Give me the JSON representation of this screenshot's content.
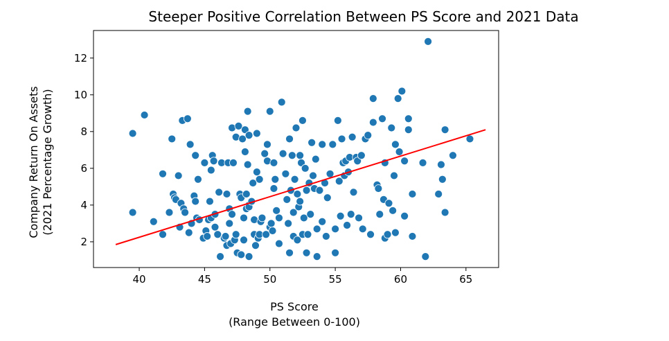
{
  "chart_data": {
    "type": "scatter",
    "title": "Steeper Positive Correlation Between PS Score and 2021 Data",
    "xlabel": [
      "PS Score",
      "(Range Between 0-100)"
    ],
    "ylabel": [
      "Company Return On Assets",
      "(2021 Percentage Growth)"
    ],
    "xlim": [
      36.5,
      67.5
    ],
    "ylim": [
      0.6,
      13.5
    ],
    "xticks": [
      40,
      45,
      50,
      55,
      60,
      65
    ],
    "yticks": [
      2,
      4,
      6,
      8,
      10,
      12
    ],
    "colors": {
      "points": "#1f77b4",
      "trendline": "#ff0000"
    },
    "trendline": {
      "x": [
        38.2,
        66.5
      ],
      "y": [
        1.85,
        8.1
      ]
    },
    "points": [
      [
        39.5,
        7.9
      ],
      [
        39.5,
        3.6
      ],
      [
        40.4,
        8.9
      ],
      [
        41.1,
        3.1
      ],
      [
        41.8,
        5.7
      ],
      [
        41.8,
        2.4
      ],
      [
        42.3,
        3.6
      ],
      [
        42.5,
        7.6
      ],
      [
        42.6,
        4.6
      ],
      [
        42.7,
        4.4
      ],
      [
        42.8,
        4.3
      ],
      [
        43.0,
        5.6
      ],
      [
        43.1,
        2.8
      ],
      [
        43.2,
        4.1
      ],
      [
        43.3,
        8.6
      ],
      [
        43.4,
        3.8
      ],
      [
        43.5,
        3.6
      ],
      [
        43.7,
        8.7
      ],
      [
        43.8,
        2.5
      ],
      [
        43.9,
        7.3
      ],
      [
        44.0,
        3.0
      ],
      [
        44.2,
        4.5
      ],
      [
        44.3,
        6.7
      ],
      [
        44.3,
        4.2
      ],
      [
        44.4,
        3.3
      ],
      [
        44.5,
        5.4
      ],
      [
        44.6,
        3.2
      ],
      [
        44.9,
        2.2
      ],
      [
        45.0,
        6.3
      ],
      [
        45.1,
        2.6
      ],
      [
        45.2,
        2.3
      ],
      [
        45.3,
        3.2
      ],
      [
        45.4,
        4.2
      ],
      [
        45.5,
        5.9
      ],
      [
        45.5,
        3.3
      ],
      [
        45.6,
        6.7
      ],
      [
        45.7,
        6.4
      ],
      [
        45.8,
        3.5
      ],
      [
        45.8,
        2.8
      ],
      [
        46.0,
        2.4
      ],
      [
        46.1,
        4.7
      ],
      [
        46.2,
        1.2
      ],
      [
        46.3,
        6.3
      ],
      [
        46.5,
        2.2
      ],
      [
        46.6,
        2.3
      ],
      [
        46.7,
        1.8
      ],
      [
        46.7,
        4.6
      ],
      [
        46.8,
        6.3
      ],
      [
        46.9,
        3.8
      ],
      [
        46.9,
        3.0
      ],
      [
        47.0,
        1.9
      ],
      [
        47.1,
        8.2
      ],
      [
        47.1,
        3.5
      ],
      [
        47.2,
        6.3
      ],
      [
        47.3,
        2.1
      ],
      [
        47.4,
        2.4
      ],
      [
        47.4,
        7.7
      ],
      [
        47.5,
        1.4
      ],
      [
        47.6,
        8.3
      ],
      [
        47.7,
        4.6
      ],
      [
        47.8,
        4.4
      ],
      [
        47.8,
        1.3
      ],
      [
        47.9,
        7.6
      ],
      [
        48.0,
        3.3
      ],
      [
        48.0,
        2.1
      ],
      [
        48.1,
        6.9
      ],
      [
        48.1,
        8.1
      ],
      [
        48.2,
        3.8
      ],
      [
        48.2,
        4.6
      ],
      [
        48.3,
        9.1
      ],
      [
        48.3,
        6.2
      ],
      [
        48.4,
        7.8
      ],
      [
        48.4,
        1.2
      ],
      [
        48.4,
        4.0
      ],
      [
        48.4,
        3.9
      ],
      [
        48.6,
        4.2
      ],
      [
        48.7,
        5.2
      ],
      [
        48.8,
        2.4
      ],
      [
        48.8,
        3.2
      ],
      [
        48.9,
        1.8
      ],
      [
        49.0,
        5.8
      ],
      [
        49.0,
        7.9
      ],
      [
        49.1,
        2.2
      ],
      [
        49.2,
        5.4
      ],
      [
        49.2,
        2.4
      ],
      [
        49.3,
        3.1
      ],
      [
        49.4,
        3.3
      ],
      [
        49.6,
        6.8
      ],
      [
        49.7,
        2.4
      ],
      [
        49.8,
        7.3
      ],
      [
        49.8,
        6.4
      ],
      [
        50.0,
        9.1
      ],
      [
        50.0,
        2.8
      ],
      [
        50.1,
        3.0
      ],
      [
        50.2,
        2.6
      ],
      [
        50.3,
        6.3
      ],
      [
        50.3,
        4.9
      ],
      [
        50.4,
        5.4
      ],
      [
        50.5,
        3.7
      ],
      [
        50.7,
        1.9
      ],
      [
        50.7,
        3.3
      ],
      [
        50.9,
        9.6
      ],
      [
        51.0,
        6.8
      ],
      [
        51.2,
        5.7
      ],
      [
        51.3,
        4.3
      ],
      [
        51.4,
        3.0
      ],
      [
        51.5,
        1.4
      ],
      [
        51.5,
        7.6
      ],
      [
        51.6,
        4.8
      ],
      [
        51.7,
        6.7
      ],
      [
        51.8,
        3.6
      ],
      [
        51.8,
        2.3
      ],
      [
        51.9,
        5.4
      ],
      [
        52.0,
        8.2
      ],
      [
        52.1,
        4.6
      ],
      [
        52.1,
        2.1
      ],
      [
        52.2,
        3.9
      ],
      [
        52.3,
        6.7
      ],
      [
        52.3,
        4.2
      ],
      [
        52.4,
        6.3
      ],
      [
        52.5,
        8.6
      ],
      [
        52.5,
        2.4
      ],
      [
        52.6,
        3.3
      ],
      [
        52.7,
        6.0
      ],
      [
        52.8,
        1.4
      ],
      [
        52.8,
        4.8
      ],
      [
        52.9,
        2.4
      ],
      [
        53.0,
        5.2
      ],
      [
        53.1,
        3.5
      ],
      [
        53.2,
        7.4
      ],
      [
        53.3,
        5.6
      ],
      [
        53.4,
        4.9
      ],
      [
        53.5,
        6.5
      ],
      [
        53.6,
        1.2
      ],
      [
        53.6,
        2.7
      ],
      [
        53.8,
        4.8
      ],
      [
        54.0,
        3.1
      ],
      [
        54.0,
        7.3
      ],
      [
        54.2,
        5.2
      ],
      [
        54.3,
        2.3
      ],
      [
        54.4,
        4.4
      ],
      [
        54.6,
        5.7
      ],
      [
        54.8,
        7.3
      ],
      [
        55.0,
        2.7
      ],
      [
        55.0,
        1.4
      ],
      [
        55.2,
        8.6
      ],
      [
        55.3,
        5.3
      ],
      [
        55.4,
        3.4
      ],
      [
        55.5,
        7.6
      ],
      [
        55.6,
        6.3
      ],
      [
        55.7,
        5.6
      ],
      [
        55.8,
        6.4
      ],
      [
        55.9,
        2.9
      ],
      [
        56.0,
        5.8
      ],
      [
        56.1,
        6.6
      ],
      [
        56.2,
        3.5
      ],
      [
        56.3,
        7.7
      ],
      [
        56.4,
        4.7
      ],
      [
        56.6,
        6.6
      ],
      [
        56.7,
        6.4
      ],
      [
        56.8,
        3.3
      ],
      [
        57.0,
        6.7
      ],
      [
        57.1,
        2.7
      ],
      [
        57.3,
        7.6
      ],
      [
        57.5,
        7.8
      ],
      [
        57.7,
        2.4
      ],
      [
        57.9,
        9.8
      ],
      [
        57.9,
        8.5
      ],
      [
        58.2,
        5.1
      ],
      [
        58.3,
        4.9
      ],
      [
        58.4,
        3.5
      ],
      [
        58.6,
        8.7
      ],
      [
        58.7,
        4.3
      ],
      [
        58.8,
        2.2
      ],
      [
        58.8,
        6.3
      ],
      [
        59.0,
        2.4
      ],
      [
        59.1,
        4.1
      ],
      [
        59.3,
        8.2
      ],
      [
        59.4,
        3.7
      ],
      [
        59.5,
        5.6
      ],
      [
        59.6,
        7.3
      ],
      [
        59.6,
        2.5
      ],
      [
        59.8,
        9.8
      ],
      [
        59.9,
        6.9
      ],
      [
        60.1,
        10.2
      ],
      [
        60.3,
        6.4
      ],
      [
        60.3,
        3.4
      ],
      [
        60.6,
        8.7
      ],
      [
        60.6,
        8.1
      ],
      [
        60.9,
        4.6
      ],
      [
        60.9,
        2.3
      ],
      [
        61.7,
        6.3
      ],
      [
        61.9,
        1.2
      ],
      [
        62.1,
        12.9
      ],
      [
        62.9,
        4.6
      ],
      [
        63.1,
        6.2
      ],
      [
        63.2,
        5.4
      ],
      [
        63.4,
        8.1
      ],
      [
        63.4,
        3.6
      ],
      [
        64.0,
        6.7
      ],
      [
        65.3,
        7.6
      ]
    ]
  }
}
